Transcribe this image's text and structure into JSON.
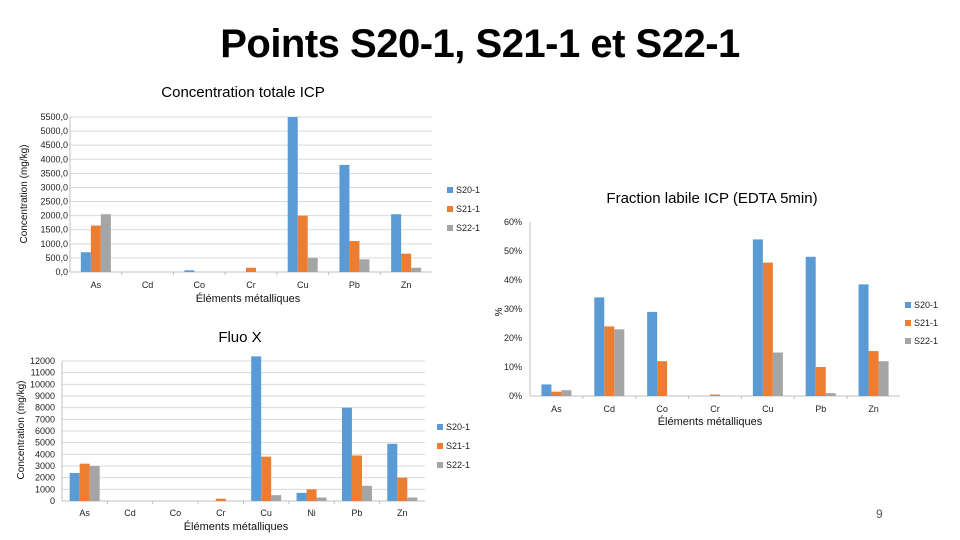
{
  "slide": {
    "title": "Points S20-1, S21-1 et S22-1",
    "page_number": "9"
  },
  "colors": {
    "S20-1": "#5B9BD5",
    "S21-1": "#ED7D31",
    "S22-1": "#A5A5A5",
    "grid": "#d9d9d9"
  },
  "chart_data": [
    {
      "id": "icp",
      "type": "bar",
      "title": "Concentration totale ICP",
      "xlabel": "Éléments métalliques",
      "ylabel": "Concentration (mg/kg)",
      "categories": [
        "As",
        "Cd",
        "Co",
        "Cr",
        "Cu",
        "Pb",
        "Zn"
      ],
      "ylim": [
        0,
        5500
      ],
      "yticks": [
        "0,0",
        "500,0",
        "1000,0",
        "1500,0",
        "2000,0",
        "2500,0",
        "3000,0",
        "3500,0",
        "4000,0",
        "4500,0",
        "5000,0",
        "5500,0"
      ],
      "grid": true,
      "legend_position": "right",
      "series": [
        {
          "name": "S20-1",
          "values": [
            700,
            0,
            60,
            0,
            5500,
            3800,
            2050
          ]
        },
        {
          "name": "S21-1",
          "values": [
            1650,
            0,
            0,
            150,
            2000,
            1100,
            650
          ]
        },
        {
          "name": "S22-1",
          "values": [
            2050,
            0,
            0,
            0,
            500,
            450,
            150
          ]
        }
      ]
    },
    {
      "id": "edta",
      "type": "bar",
      "title": "Fraction labile ICP (EDTA 5min)",
      "xlabel": "Éléments métalliques",
      "ylabel": "%",
      "categories": [
        "As",
        "Cd",
        "Co",
        "Cr",
        "Cu",
        "Pb",
        "Zn"
      ],
      "ylim": [
        0,
        60
      ],
      "yticks": [
        "0%",
        "10%",
        "20%",
        "30%",
        "40%",
        "50%",
        "60%"
      ],
      "grid": false,
      "legend_position": "right",
      "series": [
        {
          "name": "S20-1",
          "values": [
            4,
            34,
            29,
            0,
            54,
            48,
            38.5
          ]
        },
        {
          "name": "S21-1",
          "values": [
            1.5,
            24,
            12,
            0.5,
            46,
            10,
            15.5
          ]
        },
        {
          "name": "S22-1",
          "values": [
            2,
            23,
            0,
            0,
            15,
            1,
            12
          ]
        }
      ]
    },
    {
      "id": "fluo",
      "type": "bar",
      "title": "Fluo X",
      "xlabel": "Éléments métalliques",
      "ylabel": "Concentration (mg/kg)",
      "categories": [
        "As",
        "Cd",
        "Co",
        "Cr",
        "Cu",
        "Ni",
        "Pb",
        "Zn"
      ],
      "ylim": [
        0,
        12000
      ],
      "yticks": [
        "0",
        "1000",
        "2000",
        "3000",
        "4000",
        "5000",
        "6000",
        "7000",
        "8000",
        "9000",
        "10000",
        "11000",
        "12000"
      ],
      "grid": true,
      "legend_position": "right",
      "series": [
        {
          "name": "S20-1",
          "values": [
            2400,
            0,
            0,
            0,
            12400,
            700,
            8000,
            4900
          ]
        },
        {
          "name": "S21-1",
          "values": [
            3200,
            0,
            0,
            200,
            3800,
            1000,
            3900,
            2000
          ]
        },
        {
          "name": "S22-1",
          "values": [
            3000,
            0,
            0,
            0,
            500,
            300,
            1300,
            300
          ]
        }
      ]
    }
  ]
}
